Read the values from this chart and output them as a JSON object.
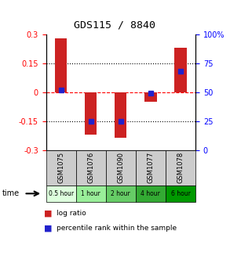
{
  "title": "GDS115 / 8840",
  "samples": [
    "GSM1075",
    "GSM1076",
    "GSM1090",
    "GSM1077",
    "GSM1078"
  ],
  "time_labels": [
    "0.5 hour",
    "1 hour",
    "2 hour",
    "4 hour",
    "6 hour"
  ],
  "log_ratios": [
    0.28,
    -0.22,
    -0.235,
    -0.05,
    0.23
  ],
  "percentiles": [
    52,
    25,
    25,
    49,
    68
  ],
  "ylim": [
    -0.3,
    0.3
  ],
  "yticks_left": [
    -0.3,
    -0.15,
    0.0,
    0.15,
    0.3
  ],
  "yticks_left_labels": [
    "-0.3",
    "-0.15",
    "0",
    "0.15",
    "0.3"
  ],
  "yticks_right": [
    0,
    25,
    50,
    75,
    100
  ],
  "yticks_right_labels": [
    "0",
    "25",
    "50",
    "75",
    "100%"
  ],
  "dotted_lines_black": [
    0.15,
    -0.15
  ],
  "zero_line": 0.0,
  "bar_color": "#cc2222",
  "dot_color": "#2222cc",
  "time_colors": [
    "#ddffdd",
    "#99ee99",
    "#66cc66",
    "#33aa33",
    "#009900"
  ],
  "sample_bg": "#cccccc",
  "bar_width": 0.4,
  "legend_bar_label": "log ratio",
  "legend_dot_label": "percentile rank within the sample"
}
